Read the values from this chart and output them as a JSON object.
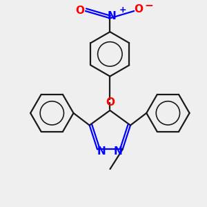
{
  "background_color": "#efefef",
  "bond_color": "#1a1a1a",
  "nitrogen_color": "#0000ff",
  "oxygen_color": "#ff0000",
  "line_width": 1.6,
  "figsize": [
    3.0,
    3.0
  ],
  "dpi": 100,
  "xlim": [
    -2.5,
    2.5
  ],
  "ylim": [
    -2.8,
    2.8
  ]
}
